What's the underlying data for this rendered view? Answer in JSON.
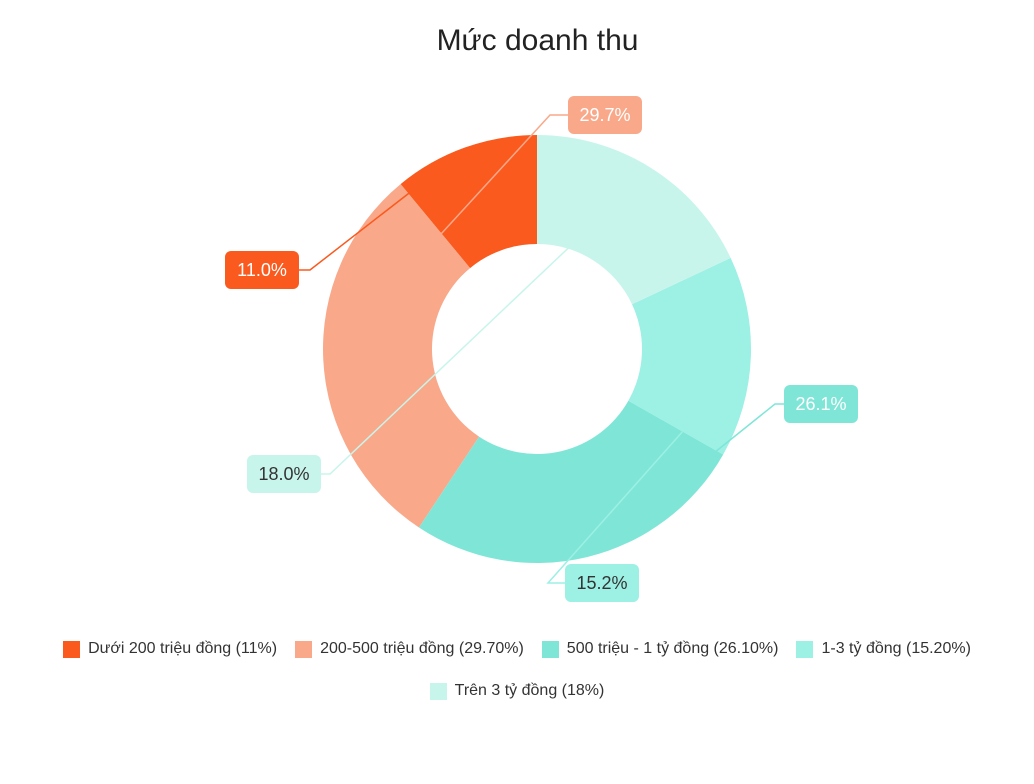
{
  "chart_data": {
    "type": "pie",
    "variant": "donut",
    "title": "Mức doanh thu",
    "slices": [
      {
        "label": "Dưới 200 triệu đồng",
        "legend": "Dưới 200 triệu đồng (11%)",
        "value": 11.0,
        "display": "11.0%",
        "color": "#fa5a1e",
        "label_color": "#fa5a1e",
        "label_text_color": "#ffffff"
      },
      {
        "label": "200-500 triệu đồng",
        "legend": "200-500 triệu đồng (29.70%)",
        "value": 29.7,
        "display": "29.7%",
        "color": "#f9a88a",
        "label_color": "#f9a88a",
        "label_text_color": "#ffffff"
      },
      {
        "label": "500 triệu - 1 tỷ đồng",
        "legend": "500 triệu - 1 tỷ đồng (26.10%)",
        "value": 26.1,
        "display": "26.1%",
        "color": "#7fe6d7",
        "label_color": "#7fe6d7",
        "label_text_color": "#ffffff"
      },
      {
        "label": "1-3 tỷ đồng",
        "legend": "1-3 tỷ đồng (15.20%)",
        "value": 15.2,
        "display": "15.2%",
        "color": "#9cf0e4",
        "label_color": "#9cf0e4",
        "label_text_color": "#333333"
      },
      {
        "label": "Trên 3 tỷ đồng",
        "legend": "Trên 3 tỷ đồng (18%)",
        "value": 18.0,
        "display": "18.0%",
        "color": "#c8f5eb",
        "label_color": "#c8f5eb",
        "label_text_color": "#333333"
      }
    ],
    "start_angle_deg": -90,
    "legend_position": "bottom"
  }
}
